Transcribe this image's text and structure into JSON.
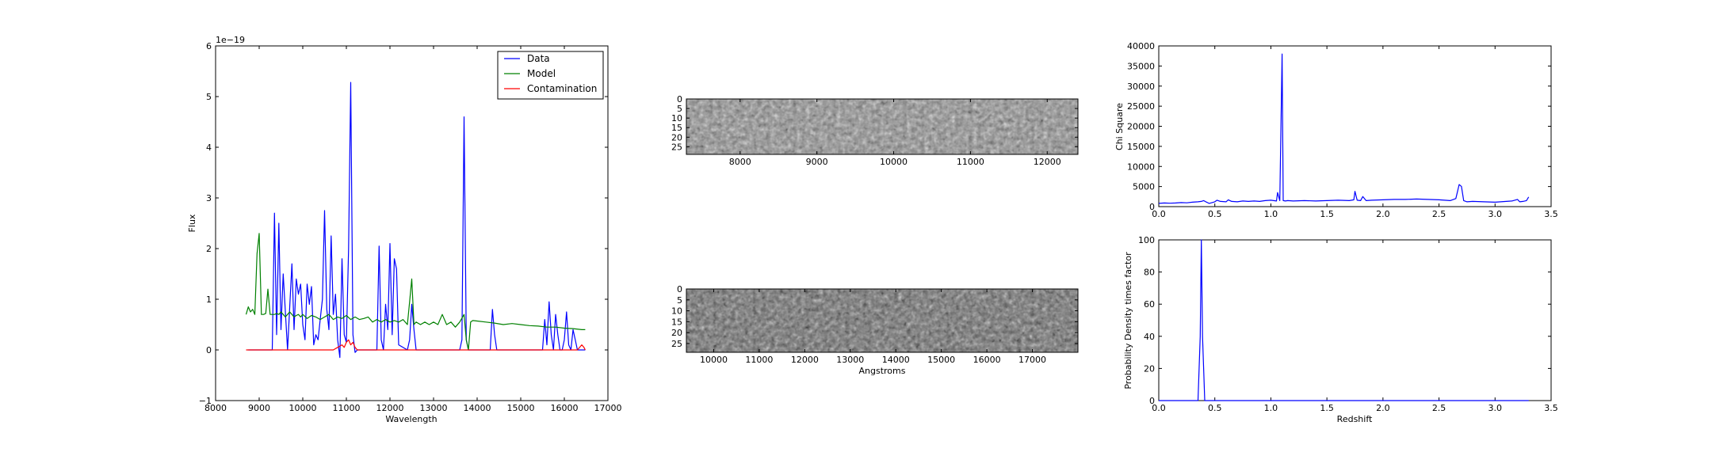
{
  "chart_data": [
    {
      "type": "line",
      "xlabel": "Wavelength",
      "ylabel": "Flux",
      "offset_text": "1e−19",
      "xlim": [
        8000,
        17000
      ],
      "ylim": [
        -1,
        6
      ],
      "xticks": [
        "8000",
        "9000",
        "10000",
        "11000",
        "12000",
        "13000",
        "14000",
        "15000",
        "16000",
        "17000"
      ],
      "yticks": [
        "−1",
        "0",
        "1",
        "2",
        "3",
        "4",
        "5",
        "6"
      ],
      "legend": "top-right",
      "series": [
        {
          "name": "Data",
          "color": "#0000ff",
          "x": [
            8750,
            9300,
            9350,
            9400,
            9450,
            9500,
            9550,
            9650,
            9750,
            9800,
            9850,
            9900,
            9950,
            10000,
            10050,
            10100,
            10150,
            10200,
            10250,
            10300,
            10350,
            10400,
            10450,
            10500,
            10550,
            10600,
            10650,
            10700,
            10750,
            10800,
            10850,
            10900,
            10950,
            11000,
            11050,
            11100,
            11150,
            11200,
            11250,
            11300,
            11350,
            11400,
            11700,
            11750,
            11800,
            11850,
            11900,
            11950,
            12000,
            12050,
            12100,
            12150,
            12200,
            12400,
            12450,
            12500,
            12550,
            12600,
            13600,
            13650,
            13700,
            13750,
            13800,
            14300,
            14350,
            14400,
            14450,
            15500,
            15550,
            15600,
            15650,
            15700,
            15750,
            15800,
            15850,
            15900,
            15950,
            16000,
            16050,
            16100,
            16150,
            16200,
            16250,
            16300,
            16350,
            16400,
            16450,
            16480
          ],
          "y": [
            0,
            0,
            2.7,
            0.3,
            2.5,
            0.4,
            1.5,
            0,
            1.7,
            0.4,
            1.4,
            1.1,
            1.3,
            0.5,
            0.2,
            1.3,
            0.9,
            1.25,
            0.1,
            0.3,
            0.2,
            0.6,
            1.0,
            2.75,
            0.8,
            0.4,
            2.25,
            0.7,
            1.1,
            0.2,
            -0.15,
            1.8,
            0.3,
            0.15,
            2.0,
            5.28,
            0.3,
            -0.05,
            0,
            0,
            0,
            0,
            0,
            2.05,
            0.2,
            0,
            0.9,
            0.4,
            2.1,
            0.3,
            1.8,
            1.6,
            0.1,
            0,
            0.2,
            0.9,
            0.4,
            0,
            0,
            0.2,
            4.6,
            0.2,
            0,
            0,
            0.8,
            0.3,
            0,
            0,
            0.6,
            0.1,
            0.95,
            0.3,
            0,
            0.7,
            0.3,
            0,
            0,
            0.2,
            0.75,
            0.1,
            0,
            0.4,
            0.2,
            0,
            0,
            0,
            0,
            0
          ]
        },
        {
          "name": "Model",
          "color": "#008000",
          "x": [
            8700,
            8750,
            8800,
            8850,
            8900,
            8950,
            9000,
            9050,
            9100,
            9150,
            9200,
            9250,
            9300,
            9350,
            9400,
            9450,
            9500,
            9550,
            9600,
            9650,
            9700,
            9750,
            9800,
            9850,
            9900,
            9950,
            10000,
            10100,
            10200,
            10300,
            10400,
            10500,
            10600,
            10700,
            10800,
            10900,
            11000,
            11100,
            11200,
            11300,
            11400,
            11500,
            11600,
            11700,
            11800,
            11900,
            12000,
            12100,
            12200,
            12300,
            12400,
            12450,
            12500,
            12550,
            12600,
            12700,
            12800,
            12900,
            13000,
            13100,
            13200,
            13300,
            13400,
            13500,
            13600,
            13700,
            13750,
            13800,
            13850,
            13900,
            14000,
            14200,
            14400,
            14600,
            14800,
            15000,
            15200,
            15400,
            15600,
            15800,
            16000,
            16200,
            16400,
            16480
          ],
          "y": [
            0.7,
            0.85,
            0.75,
            0.8,
            0.7,
            1.9,
            2.3,
            0.7,
            0.7,
            0.72,
            1.2,
            0.7,
            0.7,
            0.7,
            0.72,
            0.7,
            0.75,
            0.7,
            0.65,
            0.7,
            0.75,
            0.7,
            0.65,
            0.68,
            0.7,
            0.65,
            0.7,
            0.62,
            0.68,
            0.65,
            0.6,
            0.65,
            0.7,
            0.6,
            0.65,
            0.62,
            0.68,
            0.6,
            0.65,
            0.6,
            0.62,
            0.65,
            0.55,
            0.6,
            0.55,
            0.6,
            0.55,
            0.58,
            0.55,
            0.6,
            0.5,
            0.95,
            1.4,
            0.5,
            0.55,
            0.5,
            0.55,
            0.5,
            0.55,
            0.5,
            0.7,
            0.5,
            0.55,
            0.45,
            0.55,
            0.7,
            0.2,
            0.0,
            0.55,
            0.58,
            0.57,
            0.55,
            0.53,
            0.5,
            0.52,
            0.5,
            0.48,
            0.47,
            0.45,
            0.45,
            0.43,
            0.42,
            0.4,
            0.4
          ]
        },
        {
          "name": "Contamination",
          "color": "#ff0000",
          "x": [
            8700,
            10700,
            10800,
            10900,
            10950,
            11000,
            11050,
            11100,
            11150,
            11200,
            11250,
            11300,
            16300,
            16400,
            16450,
            16480
          ],
          "y": [
            0,
            0,
            0.05,
            0.1,
            0.05,
            0.15,
            0.2,
            0.1,
            0.15,
            0.05,
            0.0,
            0.0,
            0,
            0.1,
            0.05,
            0
          ]
        }
      ]
    },
    {
      "type": "heatmap",
      "xlim": [
        7300,
        12400
      ],
      "ylim": [
        0,
        29
      ],
      "xticks": [
        "8000",
        "9000",
        "10000",
        "11000",
        "12000"
      ],
      "yticks": [
        "0",
        "5",
        "10",
        "15",
        "20",
        "25"
      ],
      "colormap": "gray"
    },
    {
      "type": "heatmap",
      "xlabel": "Angstroms",
      "xlim": [
        9400,
        18000
      ],
      "ylim": [
        0,
        29
      ],
      "xticks": [
        "10000",
        "11000",
        "12000",
        "13000",
        "14000",
        "15000",
        "16000",
        "17000"
      ],
      "yticks": [
        "0",
        "5",
        "10",
        "15",
        "20",
        "25"
      ],
      "colormap": "gray"
    },
    {
      "type": "line",
      "ylabel": "Chi Square",
      "xlim": [
        0,
        3.5
      ],
      "ylim": [
        0,
        40000
      ],
      "xticks": [
        "0.0",
        "0.5",
        "1.0",
        "1.5",
        "2.0",
        "2.5",
        "3.0",
        "3.5"
      ],
      "yticks": [
        "0",
        "5000",
        "10000",
        "15000",
        "20000",
        "25000",
        "30000",
        "35000",
        "40000"
      ],
      "series": [
        {
          "color": "#0000ff",
          "x": [
            0.0,
            0.05,
            0.1,
            0.15,
            0.2,
            0.25,
            0.3,
            0.35,
            0.38,
            0.4,
            0.42,
            0.45,
            0.5,
            0.52,
            0.55,
            0.6,
            0.62,
            0.65,
            0.7,
            0.75,
            0.8,
            0.85,
            0.9,
            0.95,
            1.0,
            1.05,
            1.06,
            1.08,
            1.1,
            1.11,
            1.13,
            1.15,
            1.2,
            1.3,
            1.4,
            1.5,
            1.6,
            1.7,
            1.74,
            1.75,
            1.77,
            1.8,
            1.82,
            1.85,
            1.9,
            2.0,
            2.1,
            2.2,
            2.3,
            2.4,
            2.5,
            2.6,
            2.65,
            2.68,
            2.7,
            2.72,
            2.75,
            2.8,
            2.9,
            3.0,
            3.05,
            3.1,
            3.15,
            3.2,
            3.22,
            3.25,
            3.28,
            3.3
          ],
          "y": [
            800,
            900,
            850,
            900,
            1000,
            950,
            1100,
            1200,
            1300,
            1500,
            1200,
            800,
            1200,
            1600,
            1300,
            1200,
            1700,
            1300,
            1200,
            1400,
            1300,
            1400,
            1300,
            1500,
            1600,
            1400,
            3500,
            1500,
            38000,
            1500,
            1400,
            1500,
            1400,
            1500,
            1400,
            1500,
            1600,
            1500,
            1700,
            3800,
            1600,
            1500,
            2500,
            1500,
            1600,
            1700,
            1800,
            1800,
            1900,
            1800,
            1700,
            1500,
            2000,
            5500,
            5000,
            1500,
            1200,
            1300,
            1200,
            1100,
            1200,
            1300,
            1400,
            1800,
            1200,
            1300,
            1500,
            2400
          ]
        }
      ]
    },
    {
      "type": "line",
      "xlabel": "Redshift",
      "ylabel": "Probability Density times factor",
      "xlim": [
        0,
        3.5
      ],
      "ylim": [
        0,
        100
      ],
      "xticks": [
        "0.0",
        "0.5",
        "1.0",
        "1.5",
        "2.0",
        "2.5",
        "3.0",
        "3.5"
      ],
      "yticks": [
        "0",
        "20",
        "40",
        "60",
        "80",
        "100"
      ],
      "series": [
        {
          "color": "#0000ff",
          "x": [
            0.0,
            0.35,
            0.37,
            0.38,
            0.39,
            0.41,
            3.3
          ],
          "y": [
            0,
            0,
            40,
            100,
            40,
            0,
            0
          ]
        }
      ]
    }
  ]
}
